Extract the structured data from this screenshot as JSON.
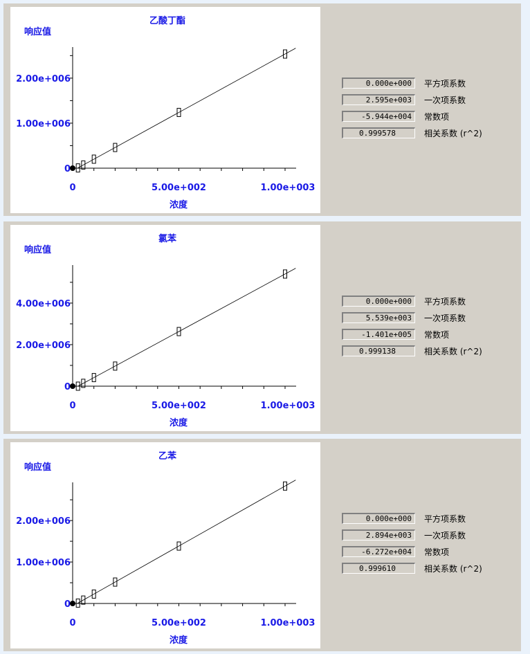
{
  "fit_labels": [
    "平方项系数",
    "一次项系数",
    "常数项",
    "相关系数 (r^2)"
  ],
  "colors": {
    "axis_text": "#1a1ae6",
    "panel": "#d4d0c8",
    "background": "#eaf2fb"
  },
  "chart_data": [
    {
      "type": "scatter",
      "title": "乙酸丁酯",
      "xlabel": "浓度",
      "ylabel": "响应值",
      "xlim": [
        0,
        1050
      ],
      "ylim": [
        0,
        2690000
      ],
      "xticks": [
        "0",
        "5.00e+002",
        "1.00e+003"
      ],
      "yticks": [
        "0",
        "1.00e+006",
        "2.00e+006"
      ],
      "points": {
        "x": [
          0,
          25,
          50,
          100,
          200,
          500,
          1000
        ],
        "y": [
          0,
          5435,
          70310,
          200060,
          459560,
          1238060,
          2535560
        ]
      },
      "fit": {
        "quadratic": "0.000e+000",
        "linear": "2.595e+003",
        "constant": "-5.944e+004",
        "r2": "0.999578"
      }
    },
    {
      "type": "scatter",
      "title": "氯苯",
      "xlabel": "浓度",
      "ylabel": "响应值",
      "xlim": [
        0,
        1050
      ],
      "ylim": [
        0,
        5830000
      ],
      "xticks": [
        "0",
        "5.00e+002",
        "1.00e+003"
      ],
      "yticks": [
        "0",
        "2.00e+006",
        "4.00e+006"
      ],
      "points": {
        "x": [
          0,
          25,
          50,
          100,
          200,
          500,
          1000
        ],
        "y": [
          0,
          0,
          136850,
          413800,
          967700,
          2629400,
          5398900
        ]
      },
      "fit": {
        "quadratic": "0.000e+000",
        "linear": "5.539e+003",
        "constant": "-1.401e+005",
        "r2": "0.999138"
      }
    },
    {
      "type": "scatter",
      "title": "乙苯",
      "xlabel": "浓度",
      "ylabel": "响应值",
      "xlim": [
        0,
        1050
      ],
      "ylim": [
        0,
        2920000
      ],
      "xticks": [
        "0",
        "5.00e+002",
        "1.00e+003"
      ],
      "yticks": [
        "0",
        "1.00e+006",
        "2.00e+006"
      ],
      "points": {
        "x": [
          0,
          25,
          50,
          100,
          200,
          500,
          1000
        ],
        "y": [
          0,
          9630,
          82000,
          226680,
          516080,
          1384280,
          2831280
        ]
      },
      "fit": {
        "quadratic": "0.000e+000",
        "linear": "2.894e+003",
        "constant": "-6.272e+004",
        "r2": "0.999610"
      }
    }
  ]
}
